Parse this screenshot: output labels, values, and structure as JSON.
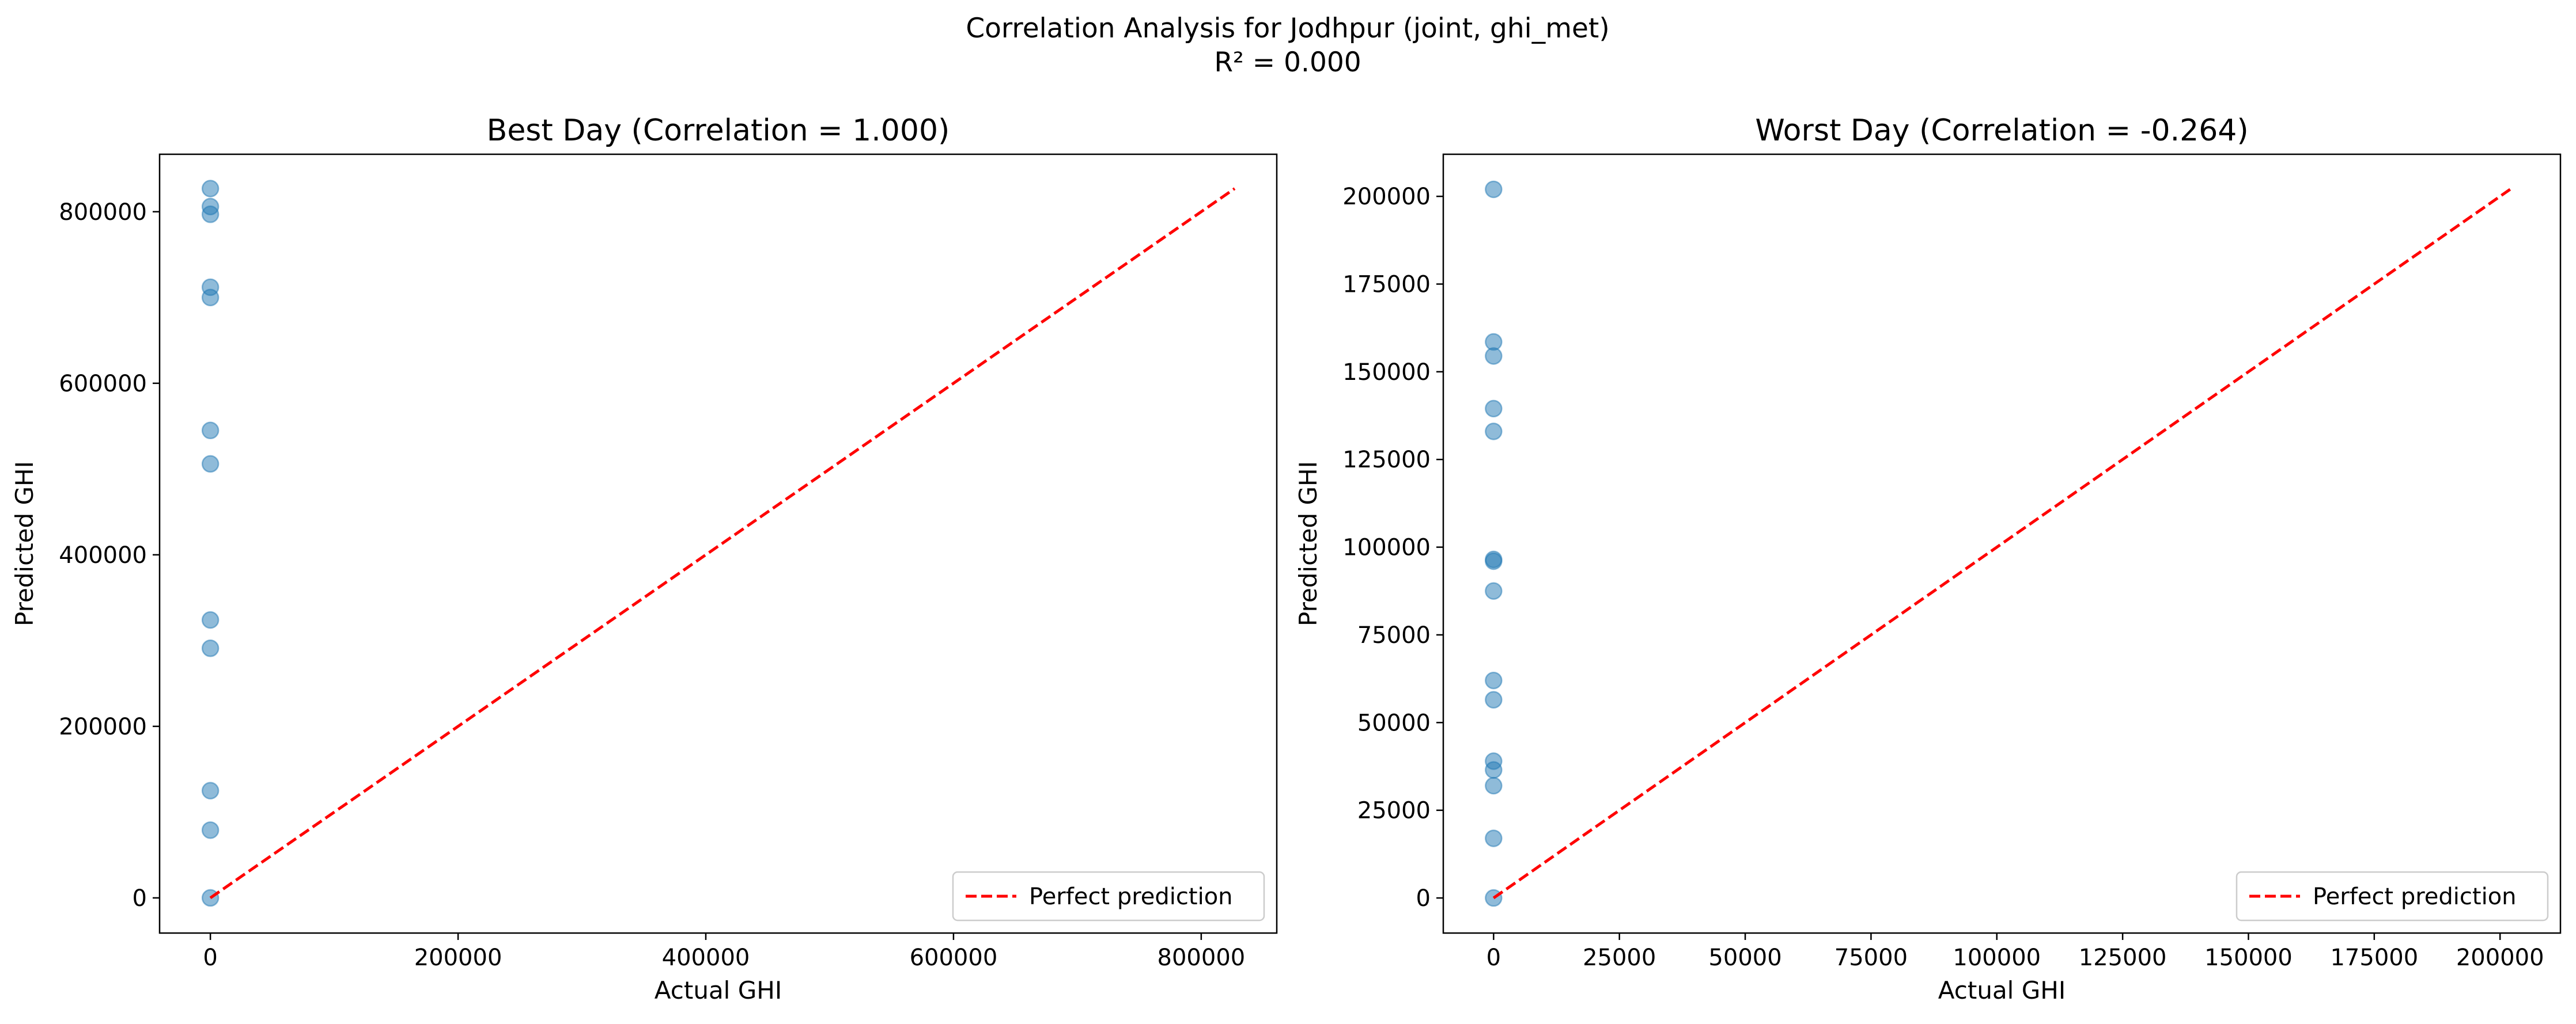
{
  "figure": {
    "title_line1": "Correlation Analysis for Jodhpur (joint, ghi_met)",
    "title_line2": "R² = 0.000"
  },
  "chart_data": [
    {
      "type": "scatter",
      "title": "Best Day (Correlation = 1.000)",
      "xlabel": "Actual GHI",
      "ylabel": "Predicted GHI",
      "xlim": [
        -41000,
        861000
      ],
      "ylim": [
        -41000,
        867000
      ],
      "xticks": [
        0,
        200000,
        400000,
        600000,
        800000
      ],
      "yticks": [
        0,
        200000,
        400000,
        600000,
        800000
      ],
      "xtick_labels": [
        "0",
        "200000",
        "400000",
        "600000",
        "800000"
      ],
      "ytick_labels": [
        "0",
        "200000",
        "400000",
        "600000",
        "800000"
      ],
      "legend": {
        "position": "bottom-right",
        "entries": [
          "Perfect prediction"
        ]
      },
      "series": [
        {
          "kind": "points",
          "color": "#1f77b4",
          "x": [
            0,
            0,
            0,
            0,
            0,
            0,
            0,
            0,
            0,
            0,
            0,
            0
          ],
          "y": [
            827000,
            806000,
            797000,
            712000,
            700000,
            545000,
            506000,
            324000,
            291000,
            125000,
            79000,
            0
          ]
        },
        {
          "kind": "line",
          "name": "Perfect prediction",
          "color": "#ff0000",
          "dashed": true,
          "x": [
            0,
            827000
          ],
          "y": [
            0,
            827000
          ]
        }
      ],
      "grid": false
    },
    {
      "type": "scatter",
      "title": "Worst Day (Correlation = -0.264)",
      "xlabel": "Actual GHI",
      "ylabel": "Predicted GHI",
      "xlim": [
        -10000,
        212000
      ],
      "ylim": [
        -10000,
        212000
      ],
      "xticks": [
        0,
        25000,
        50000,
        75000,
        100000,
        125000,
        150000,
        175000,
        200000
      ],
      "yticks": [
        0,
        25000,
        50000,
        75000,
        100000,
        125000,
        150000,
        175000,
        200000
      ],
      "xtick_labels": [
        "0",
        "25000",
        "50000",
        "75000",
        "100000",
        "125000",
        "150000",
        "175000",
        "200000"
      ],
      "ytick_labels": [
        "0",
        "25000",
        "50000",
        "75000",
        "100000",
        "125000",
        "150000",
        "175000",
        "200000"
      ],
      "legend": {
        "position": "bottom-right",
        "entries": [
          "Perfect prediction"
        ]
      },
      "series": [
        {
          "kind": "points",
          "color": "#1f77b4",
          "x": [
            0,
            0,
            0,
            0,
            0,
            0,
            0,
            0,
            0,
            0,
            0,
            0,
            0,
            0,
            0
          ],
          "y": [
            202000,
            158500,
            154500,
            139500,
            133000,
            96500,
            96000,
            87500,
            62000,
            56500,
            39000,
            36500,
            32000,
            17000,
            0
          ]
        },
        {
          "kind": "line",
          "name": "Perfect prediction",
          "color": "#ff0000",
          "dashed": true,
          "x": [
            0,
            202000
          ],
          "y": [
            0,
            202000
          ]
        }
      ],
      "grid": false
    }
  ]
}
